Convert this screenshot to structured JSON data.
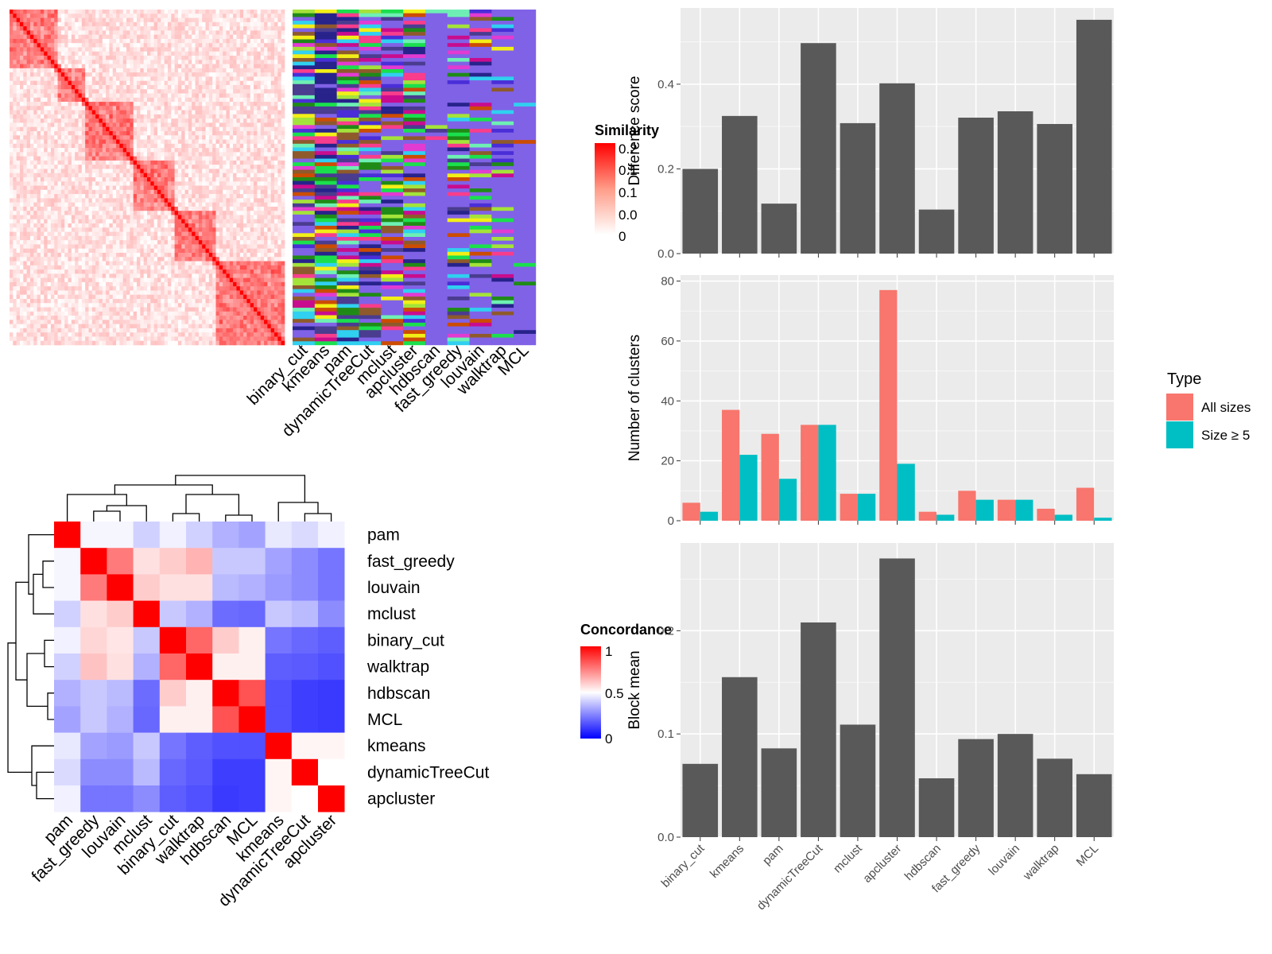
{
  "methods_similarity_order": [
    "binary_cut",
    "kmeans",
    "pam",
    "dynamicTreeCut",
    "mclust",
    "apcluster",
    "hdbscan",
    "fast_greedy",
    "louvain",
    "walktrap",
    "MCL"
  ],
  "similarity_legend": {
    "title": "Similarity",
    "labels": [
      "0.2",
      "0.1",
      "0.1",
      "0.0",
      "0"
    ],
    "high_color": "#ff0000",
    "low_color": "#ffffff"
  },
  "concordance_legend": {
    "title": "Concordance",
    "labels": [
      "1",
      "0.5",
      "0"
    ],
    "high_color": "#ff0000",
    "mid_color": "#ffffff",
    "low_color": "#0000ff"
  },
  "type_legend": {
    "title": "Type",
    "items": [
      {
        "label": "All sizes",
        "color": "#F8766D"
      },
      {
        "label": "Size ≥ 5",
        "color": "#00BFC4"
      }
    ]
  },
  "chart_data": [
    {
      "type": "heatmap",
      "name": "concordance",
      "rows": [
        "pam",
        "fast_greedy",
        "louvain",
        "mclust",
        "binary_cut",
        "walktrap",
        "hdbscan",
        "MCL",
        "kmeans",
        "dynamicTreeCut",
        "apcluster"
      ],
      "cols": [
        "pam",
        "fast_greedy",
        "louvain",
        "mclust",
        "binary_cut",
        "walktrap",
        "hdbscan",
        "MCL",
        "kmeans",
        "dynamicTreeCut",
        "apcluster"
      ],
      "values": [
        [
          1.0,
          0.48,
          0.48,
          0.4,
          0.47,
          0.4,
          0.33,
          0.3,
          0.45,
          0.42,
          0.47
        ],
        [
          0.48,
          1.0,
          0.76,
          0.56,
          0.6,
          0.65,
          0.38,
          0.38,
          0.3,
          0.25,
          0.2
        ],
        [
          0.48,
          0.76,
          1.0,
          0.6,
          0.56,
          0.56,
          0.35,
          0.33,
          0.28,
          0.25,
          0.2
        ],
        [
          0.4,
          0.56,
          0.6,
          1.0,
          0.38,
          0.33,
          0.18,
          0.17,
          0.38,
          0.35,
          0.25
        ],
        [
          0.47,
          0.58,
          0.55,
          0.38,
          1.0,
          0.8,
          0.6,
          0.53,
          0.2,
          0.17,
          0.15
        ],
        [
          0.4,
          0.62,
          0.56,
          0.33,
          0.8,
          1.0,
          0.53,
          0.53,
          0.15,
          0.14,
          0.12
        ],
        [
          0.33,
          0.38,
          0.35,
          0.18,
          0.6,
          0.53,
          1.0,
          0.84,
          0.12,
          0.08,
          0.07
        ],
        [
          0.3,
          0.38,
          0.33,
          0.17,
          0.53,
          0.53,
          0.84,
          1.0,
          0.12,
          0.08,
          0.07
        ],
        [
          0.45,
          0.3,
          0.28,
          0.38,
          0.2,
          0.15,
          0.12,
          0.12,
          1.0,
          0.52,
          0.52
        ],
        [
          0.42,
          0.25,
          0.25,
          0.35,
          0.17,
          0.14,
          0.08,
          0.08,
          0.52,
          1.0,
          0.5
        ],
        [
          0.47,
          0.2,
          0.2,
          0.25,
          0.15,
          0.12,
          0.07,
          0.08,
          0.52,
          0.5,
          1.0
        ]
      ],
      "value_range": [
        0,
        1
      ]
    },
    {
      "type": "bar",
      "name": "difference_score",
      "categories": [
        "binary_cut",
        "kmeans",
        "pam",
        "dynamicTreeCut",
        "mclust",
        "apcluster",
        "hdbscan",
        "fast_greedy",
        "louvain",
        "walktrap",
        "MCL"
      ],
      "values": [
        0.2,
        0.325,
        0.118,
        0.497,
        0.308,
        0.402,
        0.104,
        0.321,
        0.336,
        0.306,
        0.552
      ],
      "ylabel": "Difference score",
      "ylim": [
        0,
        0.58
      ],
      "yticks": [
        0.0,
        0.2,
        0.4
      ],
      "ytick_labels": [
        "0.0",
        "0.2",
        "0.4"
      ],
      "color": "#595959"
    },
    {
      "type": "bar",
      "name": "number_of_clusters",
      "categories": [
        "binary_cut",
        "kmeans",
        "pam",
        "dynamicTreeCut",
        "mclust",
        "apcluster",
        "hdbscan",
        "fast_greedy",
        "louvain",
        "walktrap",
        "MCL"
      ],
      "series": [
        {
          "name": "All sizes",
          "values": [
            6,
            37,
            29,
            32,
            9,
            77,
            3,
            10,
            7,
            4,
            11
          ]
        },
        {
          "name": "Size ≥ 5",
          "values": [
            3,
            22,
            14,
            32,
            9,
            19,
            2,
            7,
            7,
            2,
            1
          ]
        }
      ],
      "ylabel": "Number of clusters",
      "ylim": [
        0,
        82
      ],
      "yticks": [
        0,
        20,
        40,
        60,
        80
      ],
      "ytick_labels": [
        "0",
        "20",
        "40",
        "60",
        "80"
      ]
    },
    {
      "type": "bar",
      "name": "block_mean",
      "categories": [
        "binary_cut",
        "kmeans",
        "pam",
        "dynamicTreeCut",
        "mclust",
        "apcluster",
        "hdbscan",
        "fast_greedy",
        "louvain",
        "walktrap",
        "MCL"
      ],
      "values": [
        0.071,
        0.155,
        0.086,
        0.208,
        0.109,
        0.27,
        0.057,
        0.095,
        0.1,
        0.076,
        0.061
      ],
      "ylabel": "Block mean",
      "ylim": [
        0,
        0.285
      ],
      "yticks": [
        0.0,
        0.1,
        0.2
      ],
      "ytick_labels": [
        "0.0",
        "0.1",
        "0.2"
      ],
      "color": "#595959"
    }
  ]
}
